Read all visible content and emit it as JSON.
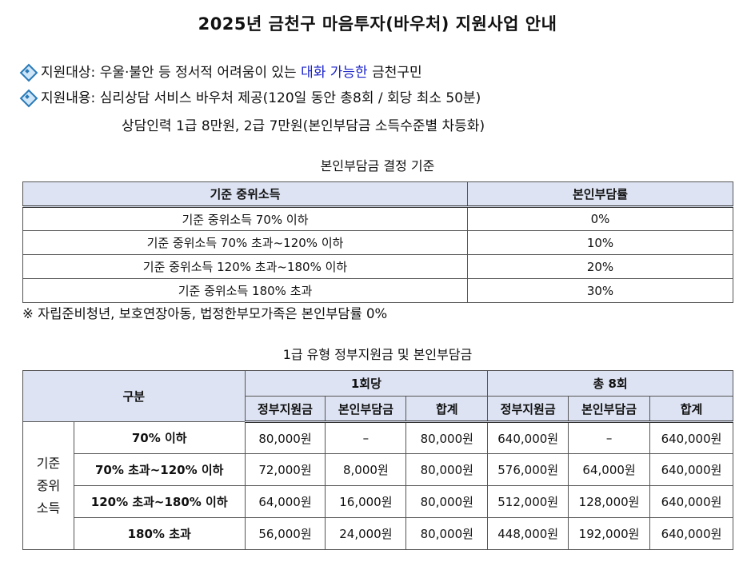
{
  "title": "2025년 금천구 마음투자(바우처) 지원사업 안내",
  "bullets": {
    "target_label": "지원대상:",
    "target_pre": " 우울·불안 등 정서적 어려움이 있는 ",
    "target_highlight": "대화 가능한",
    "target_post": " 금천구민",
    "content_label": "지원내용:",
    "content_text": " 심리상담 서비스 바우처 제공(120일 동안 총8회 / 회당 최소 50분)",
    "content_line2": "상담인력 1급 8만원, 2급 7만원(본인부담금 소득수준별 차등화)"
  },
  "table1": {
    "caption": "본인부담금 결정 기준",
    "headers": [
      "기준 중위소득",
      "본인부담률"
    ],
    "rows": [
      [
        "기준 중위소득 70% 이하",
        "0%"
      ],
      [
        "기준 중위소득 70% 초과~120% 이하",
        "10%"
      ],
      [
        "기준 중위소득 120% 초과~180% 이하",
        "20%"
      ],
      [
        "기준 중위소득 180% 초과",
        "30%"
      ]
    ]
  },
  "note": "※  자립준비청년, 보호연장아동, 법정한부모가족은 본인부담률 0%",
  "table2": {
    "caption": "1급 유형 정부지원금 및 본인부담금",
    "header_category": "구분",
    "group1": "1회당",
    "group2": "총 8회",
    "subheaders": [
      "정부지원금",
      "본인부담금",
      "합계",
      "정부지원금",
      "본인부담금",
      "합계"
    ],
    "side_label_lines": [
      "기준",
      "중위",
      "소득"
    ],
    "rows": [
      {
        "label": "70% 이하",
        "values": [
          "80,000원",
          "–",
          "80,000원",
          "640,000원",
          "–",
          "640,000원"
        ]
      },
      {
        "label": "70% 초과~120% 이하",
        "values": [
          "72,000원",
          "8,000원",
          "80,000원",
          "576,000원",
          "64,000원",
          "640,000원"
        ]
      },
      {
        "label": "120% 초과~180% 이하",
        "values": [
          "64,000원",
          "16,000원",
          "80,000원",
          "512,000원",
          "128,000원",
          "640,000원"
        ]
      },
      {
        "label": "180% 초과",
        "values": [
          "56,000원",
          "24,000원",
          "80,000원",
          "448,000원",
          "192,000원",
          "640,000원"
        ]
      }
    ]
  }
}
